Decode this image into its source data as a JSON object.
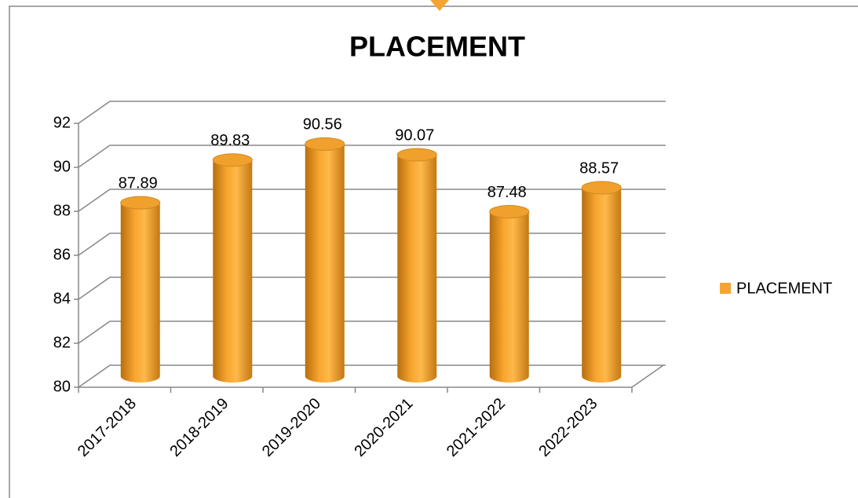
{
  "chart_data": {
    "type": "bar",
    "title": "PLACEMENT",
    "categories": [
      "2017-2018",
      "2018-2019",
      "2019-2020",
      "2020-2021",
      "2021-2022",
      "2022-2023"
    ],
    "series": [
      {
        "name": "PLACEMENT",
        "color": "#f5a431",
        "values": [
          87.89,
          89.83,
          90.56,
          90.07,
          87.48,
          88.57
        ]
      }
    ],
    "ylim": [
      80,
      92
    ],
    "yticks": [
      80,
      82,
      84,
      86,
      88,
      90,
      92
    ],
    "grid": true,
    "legend": "right"
  }
}
